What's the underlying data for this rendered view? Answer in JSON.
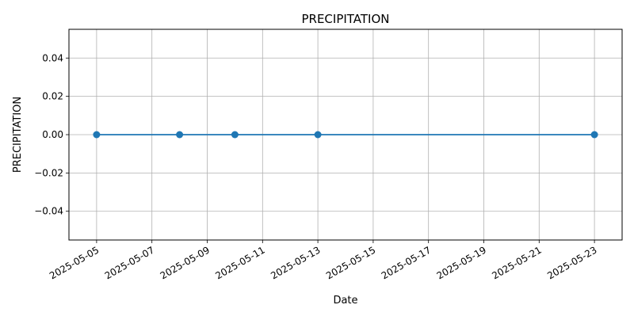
{
  "chart_data": {
    "type": "line",
    "title": "PRECIPITATION",
    "xlabel": "Date",
    "ylabel": "PRECIPITATION",
    "x": [
      "2025-05-05",
      "2025-05-08",
      "2025-05-10",
      "2025-05-13",
      "2025-05-23"
    ],
    "series": [
      {
        "values": [
          0.0,
          0.0,
          0.0,
          0.0,
          0.0
        ]
      }
    ],
    "xlim": [
      "2025-05-04",
      "2025-05-24"
    ],
    "xticks": [
      "2025-05-05",
      "2025-05-07",
      "2025-05-09",
      "2025-05-11",
      "2025-05-13",
      "2025-05-15",
      "2025-05-17",
      "2025-05-19",
      "2025-05-21",
      "2025-05-23"
    ],
    "ylim": [
      -0.055,
      0.055
    ],
    "yticks": [
      -0.04,
      -0.02,
      0.0,
      0.02,
      0.04
    ],
    "ytick_labels": [
      "−0.04",
      "−0.02",
      "0.00",
      "0.02",
      "0.04"
    ],
    "grid": true,
    "line_color": "#1f77b4"
  }
}
